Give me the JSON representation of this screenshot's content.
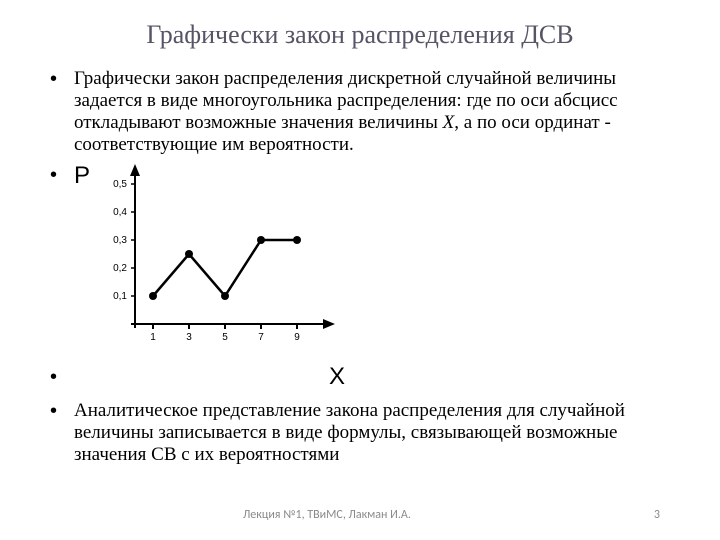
{
  "title": "Графически закон распределения ДСВ",
  "para1_pre": "Графически закон распределения дискретной случайной величины задается в виде многоугольника распределения: где по оси абсцисс откладывают возможные значения величины ",
  "para1_x": "X",
  "para1_post": ", а по оси ординат - соответствующие им вероятности.",
  "p_label": "P",
  "x_label": "X",
  "para2": "Аналитическое представление закона распределения для случайной величины записывается в виде формулы, связывающей возможные значения СВ с их вероятностями",
  "footer_center": "Лекция №1, ТВиМС, Лакман И.А.",
  "footer_page": "3",
  "chart": {
    "type": "line",
    "x_ticks": [
      1,
      3,
      5,
      7,
      9
    ],
    "y_ticks": [
      "0,1",
      "0,2",
      "0,3",
      "0,4",
      "0,5"
    ],
    "points_x": [
      1,
      3,
      5,
      7,
      9
    ],
    "points_y": [
      0.1,
      0.25,
      0.1,
      0.3,
      0.3
    ],
    "ylim": [
      0,
      0.5
    ],
    "xlim": [
      0,
      10
    ],
    "line_color": "#000000",
    "marker_color": "#000000",
    "axis_color": "#000000",
    "background_color": "#ffffff",
    "line_width": 2.5,
    "marker_radius": 4,
    "tick_fontsize": 10
  }
}
